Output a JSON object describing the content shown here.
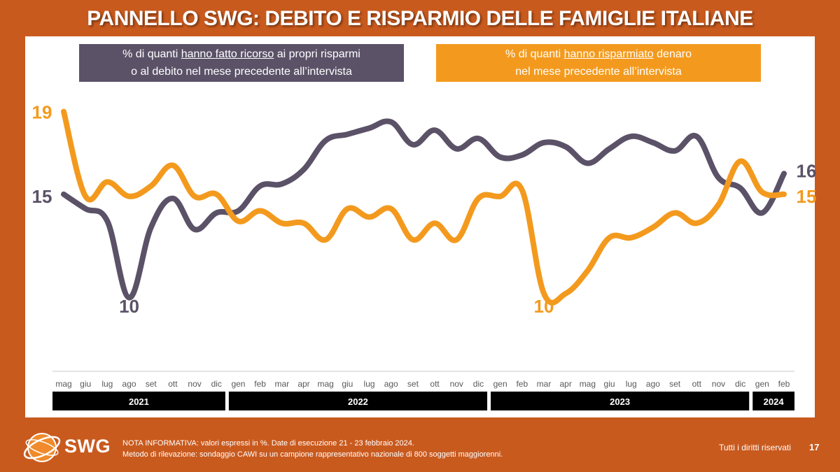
{
  "title": "PANNELLO SWG: DEBITO E RISPARMIO DELLE FAMIGLIE ITALIANE",
  "legend": {
    "debt": {
      "pre": "% di quanti ",
      "underlined": "hanno fatto ricorso",
      "post": " ai propri risparmi",
      "line2": "o al debito nel mese precedente all’intervista"
    },
    "save": {
      "pre": "% di quanti ",
      "underlined": "hanno risparmiato",
      "post": " denaro",
      "line2": "nel mese precedente all’intervista"
    }
  },
  "chart_data": {
    "type": "line",
    "categories": [
      "mag",
      "giu",
      "lug",
      "ago",
      "set",
      "ott",
      "nov",
      "dic",
      "gen",
      "feb",
      "mar",
      "apr",
      "mag",
      "giu",
      "lug",
      "ago",
      "set",
      "ott",
      "nov",
      "dic",
      "gen",
      "feb",
      "mar",
      "apr",
      "mag",
      "giu",
      "lug",
      "ago",
      "set",
      "ott",
      "nov",
      "dic",
      "gen",
      "feb"
    ],
    "years": [
      {
        "label": "2021",
        "from": 0,
        "to": 7
      },
      {
        "label": "2022",
        "from": 8,
        "to": 19
      },
      {
        "label": "2023",
        "from": 20,
        "to": 31
      },
      {
        "label": "2024",
        "from": 32,
        "to": 33
      }
    ],
    "series": [
      {
        "name": "% di quanti hanno fatto ricorso ai propri risparmi o al debito nel mese precedente all’intervista",
        "color": "#5B5268",
        "values": [
          15,
          14.3,
          13.7,
          10,
          13.4,
          14.8,
          13.3,
          14.1,
          14.2,
          15.4,
          15.5,
          16.2,
          17.6,
          17.9,
          18.2,
          18.5,
          17.4,
          18.1,
          17.2,
          17.7,
          16.8,
          16.9,
          17.5,
          17.3,
          16.5,
          17.2,
          17.8,
          17.5,
          17.1,
          17.8,
          15.8,
          15.3,
          14.1,
          16
        ],
        "start_label": "15",
        "min_label": "10",
        "min_index": 3,
        "end_label": "16"
      },
      {
        "name": "% di quanti hanno risparmiato denaro nel mese precedente all’intervista",
        "color": "#F39A1E",
        "values": [
          19,
          14.9,
          15.6,
          14.9,
          15.4,
          16.4,
          14.9,
          15,
          13.7,
          14.2,
          13.6,
          13.6,
          12.8,
          14.3,
          13.9,
          14.3,
          12.8,
          13.6,
          12.8,
          14.8,
          14.9,
          15.2,
          10.2,
          10.2,
          11.3,
          12.9,
          12.9,
          13.4,
          14.1,
          13.6,
          14.5,
          16.6,
          15.1,
          15
        ],
        "start_label": "19",
        "min_label": "10",
        "min_index": 22,
        "end_label": "15"
      }
    ],
    "ylim": [
      8.5,
      20
    ],
    "grid": false
  },
  "footer": {
    "note_line1": "NOTA INFORMATIVA: valori espressi in %. Date di esecuzione 21 - 23 febbraio 2024.",
    "note_line2": "Metodo di rilevazione: sondaggio CAWI su un campione rappresentativo nazionale di 800 soggetti maggiorenni.",
    "logo": "SWG",
    "rights": "Tutti i diritti riservati",
    "page_number": "17"
  },
  "colors": {
    "background": "#C95A1E",
    "debt": "#5B5268",
    "save": "#F39A1E"
  }
}
